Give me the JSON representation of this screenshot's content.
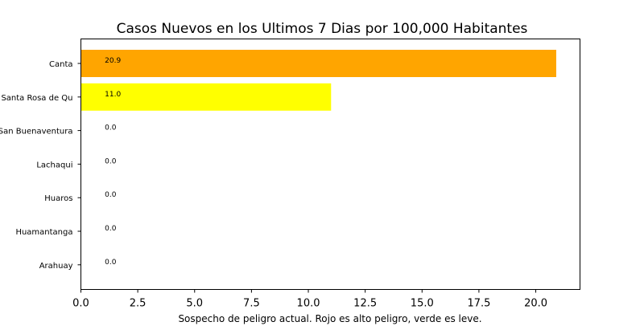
{
  "chart_data": {
    "type": "bar",
    "orientation": "horizontal",
    "title": "Casos Nuevos en los Ultimos 7 Dias por 100,000 Habitantes",
    "xlabel": "Sospecho de peligro actual. Rojo es alto peligro, verde es leve.",
    "ylabel": "",
    "categories": [
      "Canta",
      "Santa Rosa de Qu",
      "San Buenaventura",
      "Lachaqui",
      "Huaros",
      "Huamantanga",
      "Arahuay"
    ],
    "values": [
      20.9,
      11.0,
      0.0,
      0.0,
      0.0,
      0.0,
      0.0
    ],
    "value_labels": [
      "20.9",
      "11.0",
      "0.0",
      "0.0",
      "0.0",
      "0.0",
      "0.0"
    ],
    "bar_colors": [
      "#ffa500",
      "#ffff00",
      "#ffa500",
      "#ffa500",
      "#ffa500",
      "#ffa500",
      "#ffa500"
    ],
    "xlim": [
      0,
      21.945
    ],
    "xticks": [
      0.0,
      2.5,
      5.0,
      7.5,
      10.0,
      12.5,
      15.0,
      17.5,
      20.0
    ],
    "xtick_labels": [
      "0.0",
      "2.5",
      "5.0",
      "7.5",
      "10.0",
      "12.5",
      "15.0",
      "17.5",
      "20.0"
    ],
    "grid": false,
    "legend": "none"
  }
}
